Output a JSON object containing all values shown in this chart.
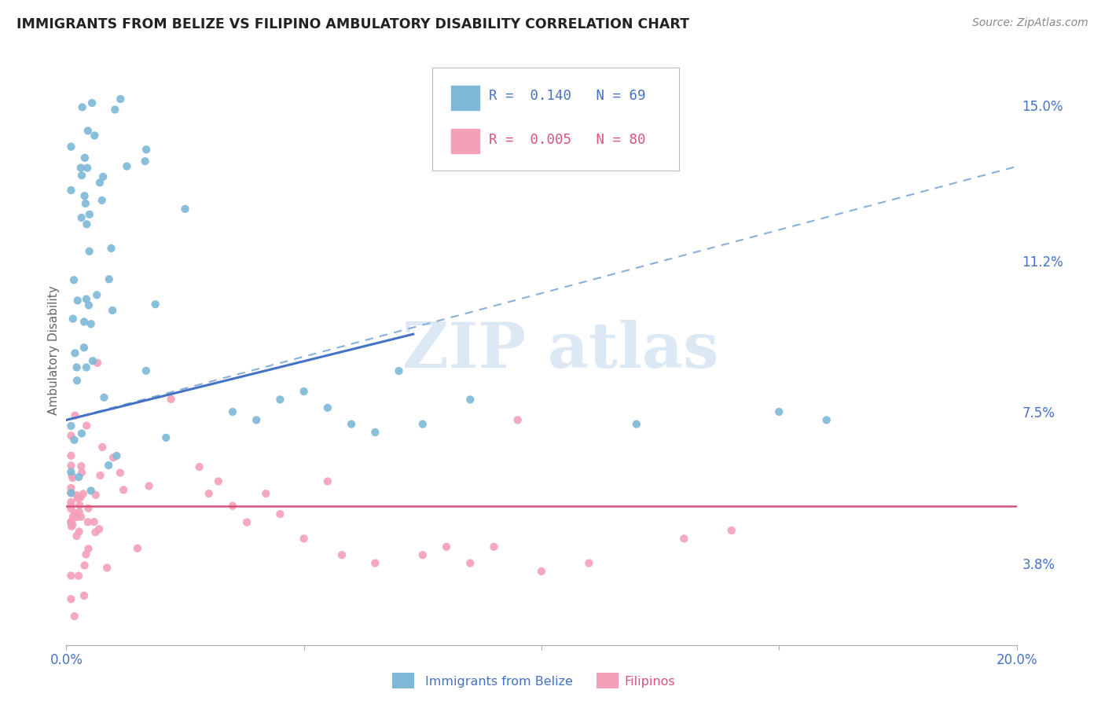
{
  "title": "IMMIGRANTS FROM BELIZE VS FILIPINO AMBULATORY DISABILITY CORRELATION CHART",
  "source": "Source: ZipAtlas.com",
  "ylabel": "Ambulatory Disability",
  "x_min": 0.0,
  "x_max": 0.2,
  "y_min": 0.018,
  "y_max": 0.162,
  "y_tick_labels_right": [
    "3.8%",
    "7.5%",
    "11.2%",
    "15.0%"
  ],
  "y_tick_values_right": [
    0.038,
    0.075,
    0.112,
    0.15
  ],
  "legend_labels": [
    "Immigrants from Belize",
    "Filipinos"
  ],
  "R_belize": 0.14,
  "N_belize": 69,
  "R_filipino": 0.005,
  "N_filipino": 80,
  "color_belize": "#7db8d8",
  "color_filipino": "#f4a0b8",
  "color_belize_line": "#4472c4",
  "color_filipino_line": "#d9547a",
  "color_dashed": "#88b0d8",
  "watermark_color": "#dde8f5"
}
